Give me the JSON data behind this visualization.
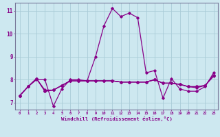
{
  "xlabel": "Windchill (Refroidissement éolien,°C)",
  "background_color": "#cde8f0",
  "grid_color": "#aaccd8",
  "line_color": "#880088",
  "xlim": [
    -0.5,
    23.5
  ],
  "ylim": [
    6.7,
    11.35
  ],
  "xticks": [
    0,
    1,
    2,
    3,
    4,
    5,
    6,
    7,
    8,
    9,
    10,
    11,
    12,
    13,
    14,
    15,
    16,
    17,
    18,
    19,
    20,
    21,
    22,
    23
  ],
  "yticks": [
    7,
    8,
    9,
    10,
    11
  ],
  "series1": [
    7.3,
    7.7,
    8.0,
    8.0,
    6.85,
    7.6,
    8.0,
    8.0,
    7.95,
    9.0,
    10.35,
    11.1,
    10.75,
    10.9,
    10.7,
    8.3,
    8.4,
    7.2,
    8.05,
    7.6,
    7.5,
    7.5,
    7.7,
    8.3
  ],
  "series2": [
    7.3,
    7.7,
    8.05,
    7.5,
    7.55,
    7.75,
    7.95,
    7.95,
    7.95,
    7.95,
    7.95,
    7.95,
    7.9,
    7.9,
    7.9,
    7.9,
    8.0,
    7.85,
    7.85,
    7.8,
    7.7,
    7.65,
    7.75,
    8.15
  ],
  "series3": [
    7.3,
    7.7,
    8.05,
    7.5,
    7.55,
    7.75,
    7.95,
    7.95,
    7.95,
    7.95,
    7.95,
    7.95,
    7.9,
    7.9,
    7.9,
    7.9,
    8.0,
    7.85,
    7.85,
    7.8,
    7.7,
    7.7,
    7.75,
    8.2
  ],
  "series4": [
    7.3,
    7.7,
    8.05,
    7.55,
    7.55,
    7.75,
    7.95,
    7.95,
    7.95,
    7.95,
    7.95,
    7.95,
    7.9,
    7.9,
    7.9,
    7.9,
    8.0,
    7.85,
    7.85,
    7.8,
    7.7,
    7.7,
    7.75,
    8.18
  ]
}
